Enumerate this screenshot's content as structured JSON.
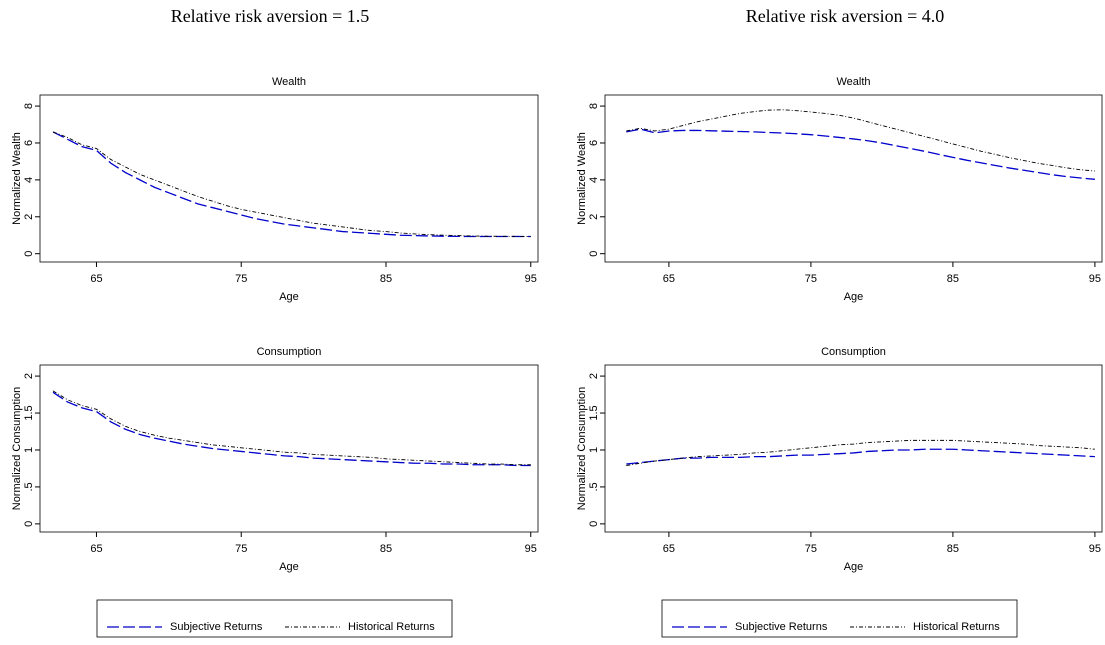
{
  "headings": [
    "Relative risk aversion = 1.5",
    "Relative risk aversion = 4.0"
  ],
  "chart_data": [
    {
      "type": "line",
      "title": "Wealth",
      "xlabel": "Age",
      "ylabel": "Normalized Wealth",
      "x": [
        62,
        63,
        64,
        65,
        66,
        67,
        68,
        69,
        70,
        71,
        72,
        73,
        74,
        75,
        76,
        77,
        78,
        79,
        80,
        81,
        82,
        83,
        84,
        85,
        86,
        87,
        88,
        89,
        90,
        91,
        92,
        93,
        94,
        95
      ],
      "series": [
        {
          "color": "#0000cc",
          "values": [
            6.6,
            6.2,
            5.8,
            5.6,
            4.9,
            4.4,
            4.0,
            3.6,
            3.3,
            3.0,
            2.7,
            2.5,
            2.3,
            2.1,
            1.9,
            1.75,
            1.6,
            1.5,
            1.4,
            1.3,
            1.2,
            1.15,
            1.1,
            1.05,
            1.0,
            0.98,
            0.96,
            0.95,
            0.94,
            0.93,
            0.93,
            0.93,
            0.93,
            0.93
          ]
        },
        {
          "color": "#000000",
          "values": [
            6.6,
            6.3,
            5.9,
            5.7,
            5.1,
            4.7,
            4.3,
            4.0,
            3.7,
            3.4,
            3.1,
            2.85,
            2.6,
            2.4,
            2.25,
            2.1,
            1.95,
            1.8,
            1.65,
            1.55,
            1.45,
            1.35,
            1.25,
            1.2,
            1.12,
            1.07,
            1.03,
            1.0,
            0.98,
            0.96,
            0.95,
            0.94,
            0.94,
            0.93
          ]
        }
      ],
      "xlim": [
        61.1,
        95.5
      ],
      "xticks": [
        65,
        75,
        85,
        95
      ],
      "ylim": [
        -0.45,
        8.6
      ],
      "yticks": [
        0,
        2,
        4,
        6,
        8
      ]
    },
    {
      "type": "line",
      "title": "Consumption",
      "xlabel": "Age",
      "ylabel": "Normalized Consumption",
      "x": [
        62,
        63,
        64,
        65,
        66,
        67,
        68,
        69,
        70,
        71,
        72,
        73,
        74,
        75,
        76,
        77,
        78,
        79,
        80,
        81,
        82,
        83,
        84,
        85,
        86,
        87,
        88,
        89,
        90,
        91,
        92,
        93,
        94,
        95
      ],
      "series": [
        {
          "name": "Subjective Returns",
          "color": "#0000cc",
          "values": [
            1.78,
            1.65,
            1.57,
            1.52,
            1.38,
            1.28,
            1.21,
            1.16,
            1.12,
            1.08,
            1.05,
            1.02,
            1.0,
            0.98,
            0.96,
            0.94,
            0.92,
            0.91,
            0.89,
            0.88,
            0.87,
            0.86,
            0.85,
            0.84,
            0.83,
            0.82,
            0.82,
            0.81,
            0.81,
            0.8,
            0.8,
            0.8,
            0.79,
            0.79
          ]
        },
        {
          "name": "Historical Returns",
          "color": "#000000",
          "values": [
            1.8,
            1.68,
            1.6,
            1.55,
            1.42,
            1.32,
            1.25,
            1.2,
            1.16,
            1.13,
            1.1,
            1.07,
            1.05,
            1.03,
            1.01,
            0.99,
            0.97,
            0.96,
            0.94,
            0.93,
            0.92,
            0.91,
            0.9,
            0.88,
            0.87,
            0.86,
            0.85,
            0.84,
            0.83,
            0.82,
            0.81,
            0.81,
            0.8,
            0.8
          ]
        }
      ],
      "xlim": [
        61.1,
        95.5
      ],
      "xticks": [
        65,
        75,
        85,
        95
      ],
      "ylim": [
        -0.11,
        2.15
      ],
      "yticks": [
        0,
        {
          "value": 0.5,
          "label": ".5"
        },
        1,
        1.5,
        2
      ]
    },
    {
      "type": "line",
      "title": "Wealth",
      "xlabel": "Age",
      "ylabel": "Normalized Wealth",
      "x": [
        62,
        63,
        64,
        65,
        66,
        67,
        68,
        69,
        70,
        71,
        72,
        73,
        74,
        75,
        76,
        77,
        78,
        79,
        80,
        81,
        82,
        83,
        84,
        85,
        86,
        87,
        88,
        89,
        90,
        91,
        92,
        93,
        94,
        95
      ],
      "series": [
        {
          "color": "#0000cc",
          "values": [
            6.6,
            6.75,
            6.55,
            6.65,
            6.68,
            6.68,
            6.66,
            6.64,
            6.62,
            6.6,
            6.57,
            6.54,
            6.5,
            6.45,
            6.38,
            6.3,
            6.22,
            6.12,
            6.0,
            5.85,
            5.7,
            5.55,
            5.38,
            5.22,
            5.06,
            4.92,
            4.78,
            4.64,
            4.52,
            4.4,
            4.28,
            4.18,
            4.1,
            4.03
          ]
        },
        {
          "color": "#000000",
          "values": [
            6.65,
            6.8,
            6.65,
            6.75,
            6.95,
            7.15,
            7.3,
            7.45,
            7.6,
            7.7,
            7.78,
            7.8,
            7.75,
            7.68,
            7.6,
            7.5,
            7.35,
            7.15,
            6.95,
            6.75,
            6.55,
            6.35,
            6.15,
            5.95,
            5.75,
            5.55,
            5.38,
            5.2,
            5.05,
            4.9,
            4.78,
            4.65,
            4.55,
            4.48
          ]
        }
      ],
      "xlim": [
        60.5,
        95.5
      ],
      "xticks": [
        65,
        75,
        85,
        95
      ],
      "ylim": [
        -0.45,
        8.6
      ],
      "yticks": [
        0,
        2,
        4,
        6,
        8
      ]
    },
    {
      "type": "line",
      "title": "Consumption",
      "xlabel": "Age",
      "ylabel": "Normalized Consumption",
      "x": [
        62,
        63,
        64,
        65,
        66,
        67,
        68,
        69,
        70,
        71,
        72,
        73,
        74,
        75,
        76,
        77,
        78,
        79,
        80,
        81,
        82,
        83,
        84,
        85,
        86,
        87,
        88,
        89,
        90,
        91,
        92,
        93,
        94,
        95
      ],
      "series": [
        {
          "name": "Subjective Returns",
          "color": "#0000cc",
          "values": [
            0.81,
            0.83,
            0.85,
            0.87,
            0.89,
            0.89,
            0.9,
            0.9,
            0.9,
            0.91,
            0.91,
            0.92,
            0.93,
            0.93,
            0.94,
            0.95,
            0.96,
            0.98,
            0.99,
            1.0,
            1.0,
            1.01,
            1.01,
            1.01,
            1.0,
            0.99,
            0.98,
            0.97,
            0.96,
            0.95,
            0.94,
            0.93,
            0.92,
            0.91
          ]
        },
        {
          "name": "Historical Returns",
          "color": "#000000",
          "values": [
            0.79,
            0.82,
            0.85,
            0.87,
            0.89,
            0.91,
            0.92,
            0.93,
            0.94,
            0.96,
            0.97,
            0.99,
            1.01,
            1.03,
            1.05,
            1.07,
            1.08,
            1.1,
            1.11,
            1.12,
            1.13,
            1.13,
            1.13,
            1.13,
            1.12,
            1.11,
            1.1,
            1.09,
            1.08,
            1.06,
            1.05,
            1.04,
            1.03,
            1.01
          ]
        }
      ],
      "xlim": [
        60.5,
        95.5
      ],
      "xticks": [
        65,
        75,
        85,
        95
      ],
      "ylim": [
        -0.11,
        2.15
      ],
      "yticks": [
        0,
        {
          "value": 0.5,
          "label": ".5"
        },
        1,
        1.5,
        2
      ]
    }
  ]
}
